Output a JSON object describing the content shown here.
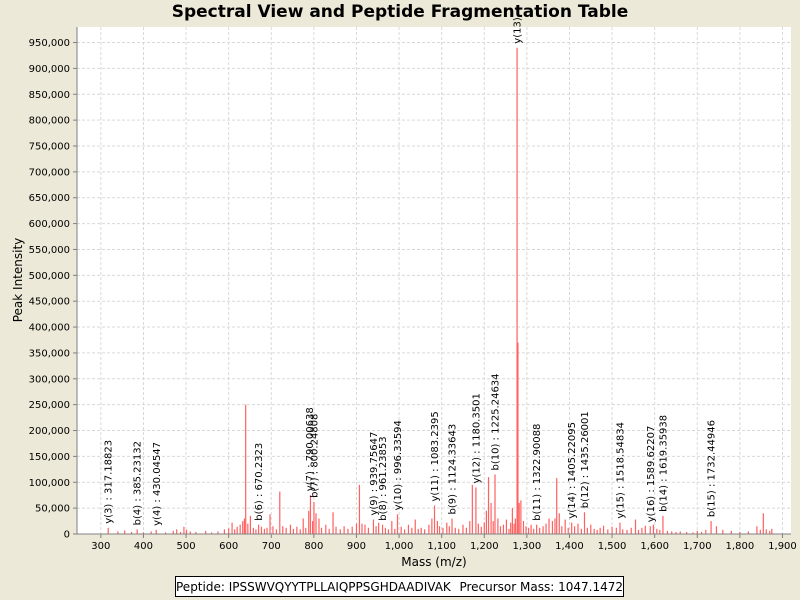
{
  "colors": {
    "background": "#ECE9D8",
    "plot_background": "#FFFFFF",
    "gridline": "#D9D9D9",
    "peak": "#FF6060",
    "annotated_peak": "#E8202A"
  },
  "footer": {
    "peptide_label": "Peptide: IPSSWVQYYTPLLAIQPPSGHDAADIVAK",
    "precursor_label": "Precursor Mass: 1047.1472"
  },
  "chart_data": {
    "type": "bar",
    "title": "Spectral View and Peptide Fragmentation Table",
    "xlabel": "Mass (m/z)",
    "ylabel": "Peak Intensity",
    "xlim": [
      244,
      1920
    ],
    "ylim": [
      0,
      980000
    ],
    "x_ticks": [
      300,
      400,
      500,
      600,
      700,
      800,
      900,
      1000,
      1100,
      1200,
      1300,
      1400,
      1500,
      1600,
      1700,
      1800,
      1900
    ],
    "x_tick_labels": [
      "300",
      "400",
      "500",
      "600",
      "700",
      "800",
      "900",
      "1,000",
      "1,100",
      "1,200",
      "1,300",
      "1,400",
      "1,500",
      "1,600",
      "1,700",
      "1,800",
      "1,900"
    ],
    "y_ticks": [
      0,
      50000,
      100000,
      150000,
      200000,
      250000,
      300000,
      350000,
      400000,
      450000,
      500000,
      550000,
      600000,
      650000,
      700000,
      750000,
      800000,
      850000,
      900000,
      950000
    ],
    "y_tick_labels": [
      "0",
      "50,000",
      "100,000",
      "150,000",
      "200,000",
      "250,000",
      "300,000",
      "350,000",
      "400,000",
      "450,000",
      "500,000",
      "550,000",
      "600,000",
      "650,000",
      "700,000",
      "750,000",
      "800,000",
      "850,000",
      "900,000",
      "950,000"
    ],
    "grid": true,
    "legend": "none",
    "peaks": [
      [
        317.2,
        12000
      ],
      [
        340,
        5000
      ],
      [
        356,
        7000
      ],
      [
        372,
        4000
      ],
      [
        385.2,
        9000
      ],
      [
        400,
        3000
      ],
      [
        418,
        5000
      ],
      [
        430.0,
        8000
      ],
      [
        452,
        3000
      ],
      [
        470,
        6000
      ],
      [
        478,
        9000
      ],
      [
        487,
        4000
      ],
      [
        495,
        14000
      ],
      [
        501,
        8000
      ],
      [
        510,
        5000
      ],
      [
        523,
        4000
      ],
      [
        546,
        6000
      ],
      [
        560,
        3000
      ],
      [
        575,
        5000
      ],
      [
        590,
        9000
      ],
      [
        600,
        11000
      ],
      [
        608,
        22000
      ],
      [
        614,
        9000
      ],
      [
        620,
        14000
      ],
      [
        627,
        18000
      ],
      [
        633,
        25000
      ],
      [
        637,
        30000
      ],
      [
        640,
        250000
      ],
      [
        645,
        20000
      ],
      [
        651,
        35000
      ],
      [
        658,
        12000
      ],
      [
        664,
        9000
      ],
      [
        670.2,
        18000
      ],
      [
        677,
        14000
      ],
      [
        684,
        10000
      ],
      [
        690,
        12000
      ],
      [
        697,
        38000
      ],
      [
        704,
        15000
      ],
      [
        712,
        9000
      ],
      [
        720,
        82000
      ],
      [
        727,
        15000
      ],
      [
        735,
        12000
      ],
      [
        745,
        18000
      ],
      [
        752,
        10000
      ],
      [
        760,
        14000
      ],
      [
        768,
        9000
      ],
      [
        775,
        30000
      ],
      [
        781,
        12000
      ],
      [
        788,
        45000
      ],
      [
        792,
        75000
      ],
      [
        797,
        25000
      ],
      [
        800.2,
        62000
      ],
      [
        805,
        40000
      ],
      [
        812,
        30000
      ],
      [
        818,
        12000
      ],
      [
        828,
        18000
      ],
      [
        836,
        10000
      ],
      [
        845,
        42000
      ],
      [
        852,
        14000
      ],
      [
        862,
        9000
      ],
      [
        871,
        15000
      ],
      [
        880,
        10000
      ],
      [
        890,
        14000
      ],
      [
        900,
        20000
      ],
      [
        907,
        95000
      ],
      [
        913,
        20000
      ],
      [
        920,
        18000
      ],
      [
        928,
        12000
      ],
      [
        939.8,
        28000
      ],
      [
        946,
        15000
      ],
      [
        952,
        22000
      ],
      [
        961.2,
        18000
      ],
      [
        968,
        12000
      ],
      [
        975,
        9000
      ],
      [
        983,
        25000
      ],
      [
        990,
        10000
      ],
      [
        996.3,
        38000
      ],
      [
        1005,
        14000
      ],
      [
        1013,
        9000
      ],
      [
        1022,
        18000
      ],
      [
        1030,
        12000
      ],
      [
        1038,
        28000
      ],
      [
        1045,
        10000
      ],
      [
        1052,
        12000
      ],
      [
        1060,
        9000
      ],
      [
        1070,
        18000
      ],
      [
        1077,
        30000
      ],
      [
        1083.2,
        55000
      ],
      [
        1090,
        25000
      ],
      [
        1095,
        15000
      ],
      [
        1103,
        12000
      ],
      [
        1112,
        22000
      ],
      [
        1118,
        15000
      ],
      [
        1124.3,
        30000
      ],
      [
        1132,
        12000
      ],
      [
        1140,
        10000
      ],
      [
        1150,
        18000
      ],
      [
        1158,
        12000
      ],
      [
        1166,
        25000
      ],
      [
        1172,
        95000
      ],
      [
        1180.4,
        90000
      ],
      [
        1186,
        20000
      ],
      [
        1193,
        14000
      ],
      [
        1200,
        22000
      ],
      [
        1205,
        45000
      ],
      [
        1210,
        110000
      ],
      [
        1216,
        60000
      ],
      [
        1221,
        25000
      ],
      [
        1225.2,
        115000
      ],
      [
        1232,
        30000
      ],
      [
        1238,
        15000
      ],
      [
        1245,
        18000
      ],
      [
        1252,
        28000
      ],
      [
        1258,
        10000
      ],
      [
        1262,
        22000
      ],
      [
        1266,
        50000
      ],
      [
        1270,
        20000
      ],
      [
        1273,
        30000
      ],
      [
        1277,
        940000
      ],
      [
        1279,
        370000
      ],
      [
        1282,
        60000
      ],
      [
        1286,
        65000
      ],
      [
        1292,
        25000
      ],
      [
        1298,
        15000
      ],
      [
        1304,
        12000
      ],
      [
        1310,
        18000
      ],
      [
        1316,
        10000
      ],
      [
        1322.9,
        18000
      ],
      [
        1330,
        12000
      ],
      [
        1338,
        15000
      ],
      [
        1345,
        20000
      ],
      [
        1352,
        30000
      ],
      [
        1360,
        25000
      ],
      [
        1366,
        30000
      ],
      [
        1370,
        108000
      ],
      [
        1376,
        40000
      ],
      [
        1382,
        15000
      ],
      [
        1390,
        28000
      ],
      [
        1397,
        12000
      ],
      [
        1405.2,
        22000
      ],
      [
        1412,
        15000
      ],
      [
        1420,
        20000
      ],
      [
        1428,
        10000
      ],
      [
        1435.3,
        42000
      ],
      [
        1442,
        12000
      ],
      [
        1450,
        18000
      ],
      [
        1458,
        10000
      ],
      [
        1465,
        8000
      ],
      [
        1472,
        12000
      ],
      [
        1480,
        16000
      ],
      [
        1490,
        9000
      ],
      [
        1500,
        14000
      ],
      [
        1510,
        12000
      ],
      [
        1518.5,
        22000
      ],
      [
        1525,
        9000
      ],
      [
        1535,
        8000
      ],
      [
        1545,
        12000
      ],
      [
        1555,
        28000
      ],
      [
        1562,
        8000
      ],
      [
        1570,
        12000
      ],
      [
        1578,
        16000
      ],
      [
        1589.6,
        15000
      ],
      [
        1597,
        18000
      ],
      [
        1605,
        10000
      ],
      [
        1612,
        8000
      ],
      [
        1619.4,
        35000
      ],
      [
        1630,
        6000
      ],
      [
        1640,
        5000
      ],
      [
        1650,
        4000
      ],
      [
        1660,
        5000
      ],
      [
        1675,
        4000
      ],
      [
        1690,
        3000
      ],
      [
        1700,
        6000
      ],
      [
        1710,
        4000
      ],
      [
        1720,
        8000
      ],
      [
        1732.4,
        25000
      ],
      [
        1745,
        15000
      ],
      [
        1760,
        8000
      ],
      [
        1780,
        6000
      ],
      [
        1800,
        4000
      ],
      [
        1820,
        5000
      ],
      [
        1840,
        15000
      ],
      [
        1848,
        8000
      ],
      [
        1855,
        40000
      ],
      [
        1862,
        9000
      ],
      [
        1870,
        6000
      ],
      [
        1875,
        10000
      ]
    ],
    "annotations": [
      {
        "label": "y(3) : 317.18823",
        "mz": 317.19
      },
      {
        "label": "b(4) : 385.23132",
        "mz": 385.23
      },
      {
        "label": "y(4) : 430.04547",
        "mz": 430.05
      },
      {
        "label": "b(6) : 670.2323",
        "mz": 670.23
      },
      {
        "label": "y(7) : 790.00638",
        "mz": 790.01
      },
      {
        "label": "b(7) : 800.24808",
        "mz": 800.25
      },
      {
        "label": "y(9) : 939.75647",
        "mz": 939.76
      },
      {
        "label": "b(8) : 961.23853",
        "mz": 961.24
      },
      {
        "label": "y(10) : 996.33594",
        "mz": 996.34
      },
      {
        "label": "y(11) : 1083.2395",
        "mz": 1083.24
      },
      {
        "label": "b(9) : 1124.33643",
        "mz": 1124.34
      },
      {
        "label": "y(12) : 1180.3501",
        "mz": 1180.35
      },
      {
        "label": "b(10) : 1225.24634",
        "mz": 1225.25
      },
      {
        "label": "y(13)",
        "mz": 1277.0
      },
      {
        "label": "b(11) : 1322.90088",
        "mz": 1322.9
      },
      {
        "label": "y(14) : 1405.22095",
        "mz": 1405.22
      },
      {
        "label": "b(12) : 1435.26001",
        "mz": 1435.26
      },
      {
        "label": "y(15) : 1518.54834",
        "mz": 1518.55
      },
      {
        "label": "y(16) : 1589.62207",
        "mz": 1589.62
      },
      {
        "label": "b(14) : 1619.35938",
        "mz": 1619.36
      },
      {
        "label": "b(15) : 1732.44946",
        "mz": 1732.45
      }
    ]
  }
}
